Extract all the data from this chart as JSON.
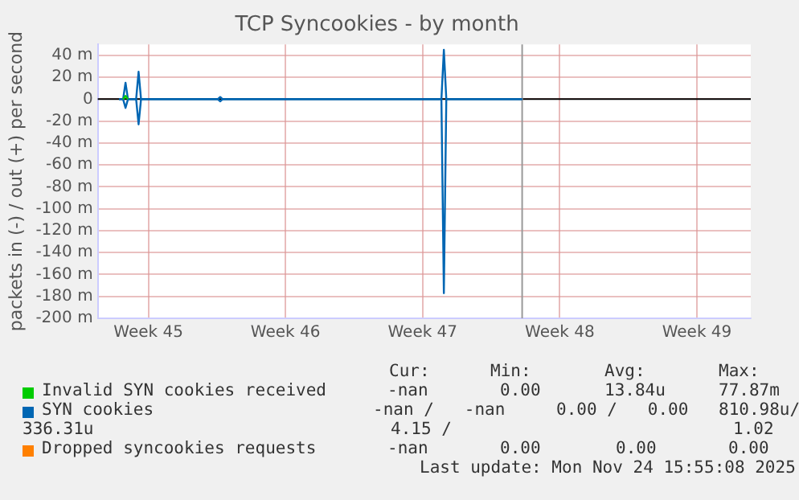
{
  "chart_data": {
    "type": "line",
    "title": "TCP Syncookies - by month",
    "ylabel": "packets in (-) / out (+) per second",
    "xlim": [
      "2025-11-03T00:00",
      "2025-12-06T08:00"
    ],
    "xticks": [
      {
        "value": "2025-11-05T14:00",
        "label": "Week 45"
      },
      {
        "value": "2025-11-12T14:00",
        "label": "Week 46"
      },
      {
        "value": "2025-11-19T14:00",
        "label": "Week 47"
      },
      {
        "value": "2025-11-26T14:00",
        "label": "Week 48"
      },
      {
        "value": "2025-12-03T14:00",
        "label": "Week 49"
      }
    ],
    "ylim": [
      -200,
      50
    ],
    "yticks": [
      {
        "value": -200,
        "label": "-200 m"
      },
      {
        "value": -180,
        "label": "-180 m"
      },
      {
        "value": -160,
        "label": "-160 m"
      },
      {
        "value": -140,
        "label": "-140 m"
      },
      {
        "value": -120,
        "label": "-120 m"
      },
      {
        "value": -100,
        "label": "-100 m"
      },
      {
        "value": -80,
        "label": "-80 m"
      },
      {
        "value": -60,
        "label": "-60 m"
      },
      {
        "value": -40,
        "label": "-40 m"
      },
      {
        "value": -20,
        "label": "-20 m"
      },
      0,
      {
        "value": 20,
        "label": "20 m"
      },
      {
        "value": 40,
        "label": "40 m"
      }
    ],
    "grid": true,
    "legend": "bottom",
    "marker": "none",
    "series": [
      {
        "name": "Invalid SYN cookies received",
        "color": "#00cc00",
        "x": [
          "2025-11-04T07:00",
          "2025-11-04T10:00",
          "2025-11-04T13:00"
        ],
        "values": [
          0,
          3,
          0
        ]
      },
      {
        "name": "SYN cookies",
        "color": "#0066b3",
        "x": [
          "2025-11-04T02:00",
          "2025-11-04T07:00",
          "2025-11-04T10:00",
          "2025-11-04T13:00",
          "2025-11-04T23:00",
          "2025-11-05T02:00",
          "2025-11-05T05:00",
          "2025-11-09T03:00",
          "2025-11-09T06:00",
          "2025-11-09T09:00",
          "2025-11-20T13:00",
          "2025-11-20T16:00",
          "2025-11-20T19:00",
          "2025-11-24T15:55"
        ],
        "values": [
          0,
          0,
          15,
          0,
          0,
          25,
          0,
          0,
          2,
          0,
          0,
          45,
          0,
          0
        ]
      },
      {
        "color": "#0066b3",
        "x": [
          "2025-11-04T02:00",
          "2025-11-04T07:00",
          "2025-11-04T10:00",
          "2025-11-04T13:00",
          "2025-11-04T23:00",
          "2025-11-05T02:00",
          "2025-11-05T05:00",
          "2025-11-09T03:00",
          "2025-11-09T06:00",
          "2025-11-09T09:00",
          "2025-11-20T13:00",
          "2025-11-20T16:00",
          "2025-11-20T19:00",
          "2025-11-24T15:55"
        ],
        "values": [
          0,
          0,
          -8,
          0,
          0,
          -23,
          0,
          0,
          -2,
          0,
          0,
          -177,
          0,
          0
        ]
      },
      {
        "name": "Dropped syncookies requests",
        "color": "#ff8000"
      }
    ],
    "ref_lines": [
      {
        "axis": "y",
        "value": 0,
        "color": "#000000"
      },
      {
        "axis": "x",
        "value": "2025-11-24T15:55",
        "color": "#999999"
      }
    ],
    "annotations": [
      "Cur:",
      "Min:",
      "Avg:",
      "Max:",
      "-nan",
      "0.00",
      "13.84u",
      "77.87m",
      "-nan /   -nan",
      "0.00 /   0.00",
      "810.98u/",
      "336.31u",
      "4.15 /",
      "1.02",
      "-nan",
      "0.00",
      "0.00",
      "0.00",
      "Last update: Mon Nov 24 15:55:08 2025"
    ]
  }
}
